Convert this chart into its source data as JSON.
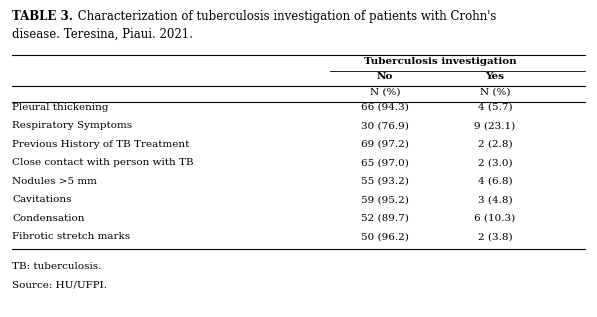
{
  "title_bold": "TABLE 3.",
  "title_normal": " Characterization of tuberculosis investigation of patients with Crohn's disease. Teresina, Piaui. 2021.",
  "col_header_main": "Tuberculosis investigation",
  "col_header_sub1": "No",
  "col_header_sub2": "Yes",
  "col_header_sub3": "N (%)",
  "rows": [
    [
      "Pleural thickening",
      "66 (94.3)",
      "4 (5.7)"
    ],
    [
      "Respiratory Symptoms",
      "30 (76.9)",
      "9 (23.1)"
    ],
    [
      "Previous History of TB Treatment",
      "69 (97.2)",
      "2 (2.8)"
    ],
    [
      "Close contact with person with TB",
      "65 (97.0)",
      "2 (3.0)"
    ],
    [
      "Nodules >5 mm",
      "55 (93.2)",
      "4 (6.8)"
    ],
    [
      "Cavitations",
      "59 (95.2)",
      "3 (4.8)"
    ],
    [
      "Condensation",
      "52 (89.7)",
      "6 (10.3)"
    ],
    [
      "Fibrotic stretch marks",
      "50 (96.2)",
      "2 (3.8)"
    ]
  ],
  "footnote1": "TB: tuberculosis.",
  "footnote2": "Source: HU/UFPI.",
  "bg_color": "#ffffff",
  "text_color": "#000000",
  "font_size": 7.5,
  "title_font_size": 8.5
}
